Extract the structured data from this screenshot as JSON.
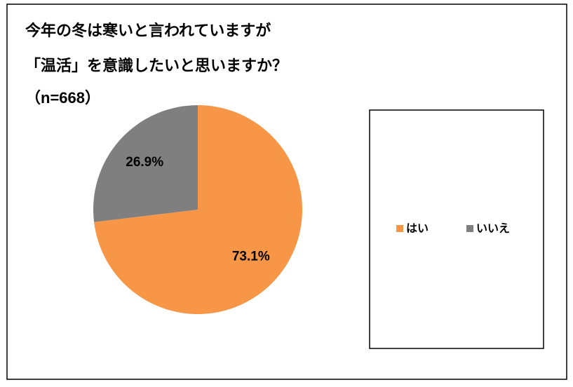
{
  "chart_data": {
    "type": "pie",
    "title": [
      "今年の冬は寒いと言われていますが",
      "「温活」を意識したいと思いますか？",
      "（n=668）"
    ],
    "categories": [
      "はい",
      "いいえ"
    ],
    "values": [
      73.1,
      26.9
    ],
    "value_labels": [
      "73.1%",
      "26.9%"
    ],
    "colors": [
      "#f79646",
      "#7f7f7f"
    ]
  }
}
